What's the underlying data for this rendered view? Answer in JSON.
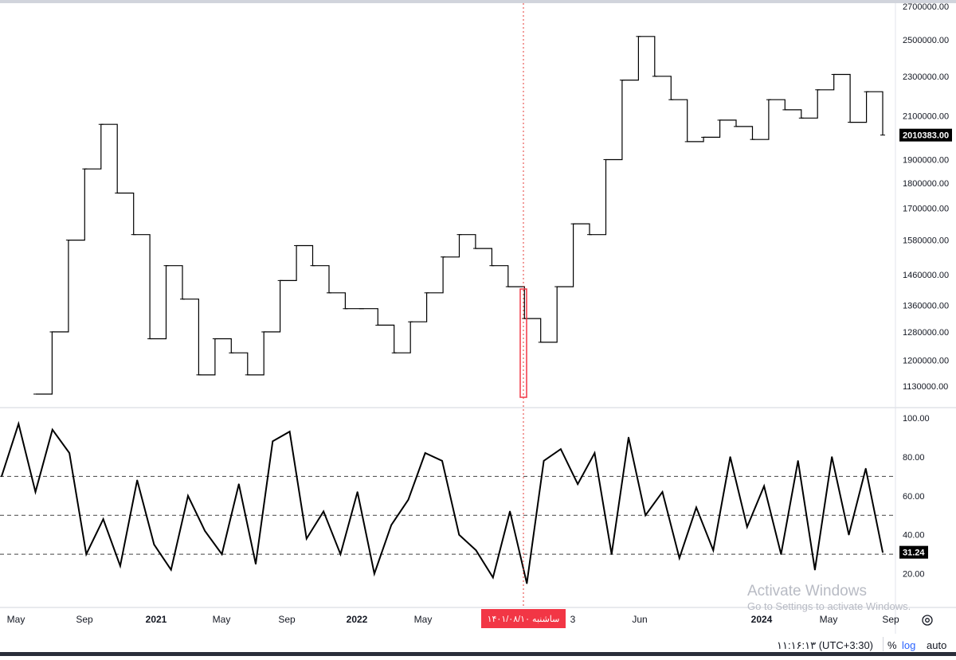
{
  "chart_data": [
    {
      "type": "line",
      "style": "step",
      "title": "",
      "ylabel": "",
      "price_scale": "right",
      "ylim": [
        1080000,
        2700000
      ],
      "y_ticks": [
        "2700000.00",
        "2500000.00",
        "2300000.00",
        "2100000.00",
        "1900000.00",
        "1800000.00",
        "1700000.00",
        "1580000.00",
        "1460000.00",
        "1360000.00",
        "1280000.00",
        "1200000.00",
        "1130000.00"
      ],
      "last_value_label": "2010383.00",
      "series": [
        {
          "x": [
            "2020-04",
            "2020-05",
            "2020-06",
            "2020-07",
            "2020-08",
            "2020-09",
            "2020-10",
            "2020-11",
            "2020-12",
            "2021-01",
            "2021-02",
            "2021-03",
            "2021-04",
            "2021-05",
            "2021-06",
            "2021-07",
            "2021-08",
            "2021-09",
            "2021-10",
            "2021-11",
            "2021-12",
            "2022-01",
            "2022-02",
            "2022-03",
            "2022-04",
            "2022-05",
            "2022-06",
            "2022-07",
            "2022-08",
            "2022-09",
            "2022-10",
            "2022-11",
            "2022-12",
            "2023-01",
            "2023-02",
            "2023-03",
            "2023-04",
            "2023-05",
            "2023-06",
            "2023-07",
            "2023-08",
            "2023-09",
            "2023-10",
            "2023-11",
            "2023-12",
            "2024-01",
            "2024-02",
            "2024-03",
            "2024-04",
            "2024-05",
            "2024-06",
            "2024-07",
            "2024-08"
          ],
          "values": [
            1110000,
            1280000,
            1580000,
            1860000,
            2060000,
            1760000,
            1600000,
            1260000,
            1490000,
            1380000,
            1160000,
            1260000,
            1220000,
            1160000,
            1280000,
            1440000,
            1560000,
            1490000,
            1400000,
            1350000,
            1350000,
            1300000,
            1220000,
            1310000,
            1400000,
            1520000,
            1600000,
            1550000,
            1490000,
            1420000,
            1320000,
            1250000,
            1420000,
            1640000,
            1600000,
            1900000,
            2280000,
            2520000,
            2300000,
            2180000,
            1980000,
            2000000,
            2080000,
            2050000,
            1990000,
            2180000,
            2130000,
            2090000,
            2230000,
            2310000,
            2070000,
            2220000,
            2010000
          ]
        }
      ]
    },
    {
      "type": "line",
      "title": "",
      "ylabel": "",
      "ylim": [
        10,
        100
      ],
      "y_ticks": [
        "100.00",
        "80.00",
        "60.00",
        "40.00",
        "20.00"
      ],
      "reference_lines": [
        70,
        50,
        30
      ],
      "last_value_label": "31.24",
      "series": [
        {
          "x": [
            "2020-04",
            "2020-05",
            "2020-06",
            "2020-07",
            "2020-08",
            "2020-09",
            "2020-10",
            "2020-11",
            "2020-12",
            "2021-01",
            "2021-02",
            "2021-03",
            "2021-04",
            "2021-05",
            "2021-06",
            "2021-07",
            "2021-08",
            "2021-09",
            "2021-10",
            "2021-11",
            "2021-12",
            "2022-01",
            "2022-02",
            "2022-03",
            "2022-04",
            "2022-05",
            "2022-06",
            "2022-07",
            "2022-08",
            "2022-09",
            "2022-10",
            "2022-11",
            "2022-12",
            "2023-01",
            "2023-02",
            "2023-03",
            "2023-04",
            "2023-05",
            "2023-06",
            "2023-07",
            "2023-08",
            "2023-09",
            "2023-10",
            "2023-11",
            "2023-12",
            "2024-01",
            "2024-02",
            "2024-03",
            "2024-04",
            "2024-05",
            "2024-06",
            "2024-07",
            "2024-08"
          ],
          "values": [
            70,
            97,
            62,
            94,
            82,
            30,
            48,
            24,
            68,
            35,
            22,
            60,
            42,
            30,
            66,
            25,
            88,
            93,
            38,
            52,
            30,
            62,
            20,
            45,
            58,
            82,
            78,
            40,
            32,
            18,
            52,
            15,
            78,
            84,
            66,
            82,
            30,
            90,
            50,
            62,
            28,
            54,
            32,
            80,
            44,
            65,
            30,
            78,
            22,
            80,
            40,
            74,
            31
          ]
        }
      ]
    }
  ],
  "time_axis": {
    "labels": [
      "May",
      "Sep",
      "2021",
      "May",
      "Sep",
      "2022",
      "May",
      "3",
      "Jun",
      "2024",
      "May",
      "Sep"
    ],
    "bold_labels": [
      "2021",
      "2022",
      "2024"
    ],
    "crosshair_date": "۱۴۰۱/۰۸/۱۰ ساشنبه"
  },
  "watermark": {
    "title": "Activate Windows",
    "subtitle": "Go to Settings to activate Windows."
  },
  "footer": {
    "time": "۱۱:۱۶:۱۳ (UTC+3:30)",
    "percent": "%",
    "log": "log",
    "auto": "auto"
  },
  "colors": {
    "line": "#000000",
    "crosshair": "#e53935",
    "highlight": "#f23645",
    "label_bg": "#000000",
    "label_fg": "#ffffff"
  },
  "icons": [
    "settings-gear-icon"
  ]
}
